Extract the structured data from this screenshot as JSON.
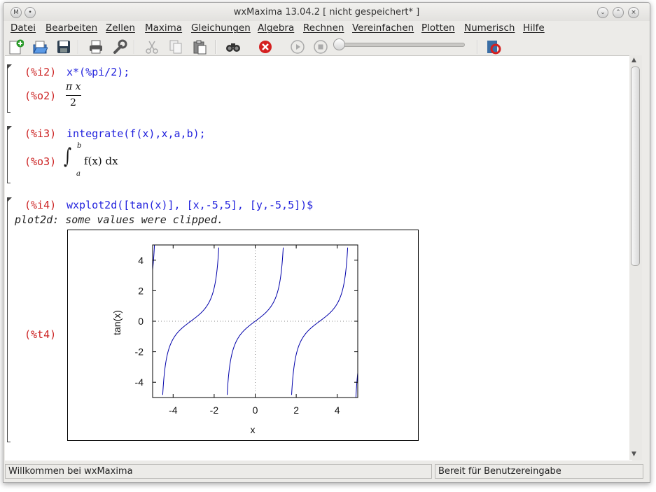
{
  "window": {
    "title": "wxMaxima 13.04.2 [ nicht gespeichert* ]"
  },
  "menu": [
    "Datei",
    "Bearbeiten",
    "Zellen",
    "Maxima",
    "Gleichungen",
    "Algebra",
    "Rechnen",
    "Vereinfachen",
    "Plotten",
    "Numerisch",
    "Hilfe"
  ],
  "toolbar": {
    "icons": [
      "new-document-icon",
      "open-icon",
      "save-icon",
      "print-icon",
      "settings-icon",
      "cut-icon",
      "copy-icon",
      "paste-icon",
      "find-icon",
      "interrupt-icon",
      "play-icon",
      "stop-icon",
      "animation-slider",
      "help-icon"
    ]
  },
  "cells": {
    "c1": {
      "in_label": "(%i2)",
      "in_text": "x*(%pi/2);",
      "out_label": "(%o2)",
      "num": "π x",
      "den": "2"
    },
    "c2": {
      "in_label": "(%i3)",
      "in_text": "integrate(f(x),x,a,b);",
      "out_label": "(%o3)",
      "upper": "b",
      "lower": "a",
      "body": "f(x) dx"
    },
    "c3": {
      "in_label": "(%i4)",
      "in_text": "wxplot2d([tan(x)], [x,-5,5], [y,-5,5])$",
      "msg": "plot2d: some values were clipped.",
      "out_label": "(%t4)"
    }
  },
  "chart_data": {
    "type": "line",
    "function": "tan(x)",
    "xlabel": "x",
    "ylabel": "tan(x)",
    "xlim": [
      -5,
      5
    ],
    "ylim": [
      -5,
      5
    ],
    "xticks": [
      "-4",
      "-2",
      "0",
      "2",
      "4"
    ],
    "yticks": [
      "-4",
      "-2",
      "0",
      "2",
      "4"
    ],
    "series": [
      {
        "name": "tan(x)",
        "color": "#0000aa"
      }
    ],
    "zero_axes": "dotted"
  },
  "status": {
    "left": "Willkommen bei wxMaxima",
    "right": "Bereit für Benutzereingabe"
  }
}
